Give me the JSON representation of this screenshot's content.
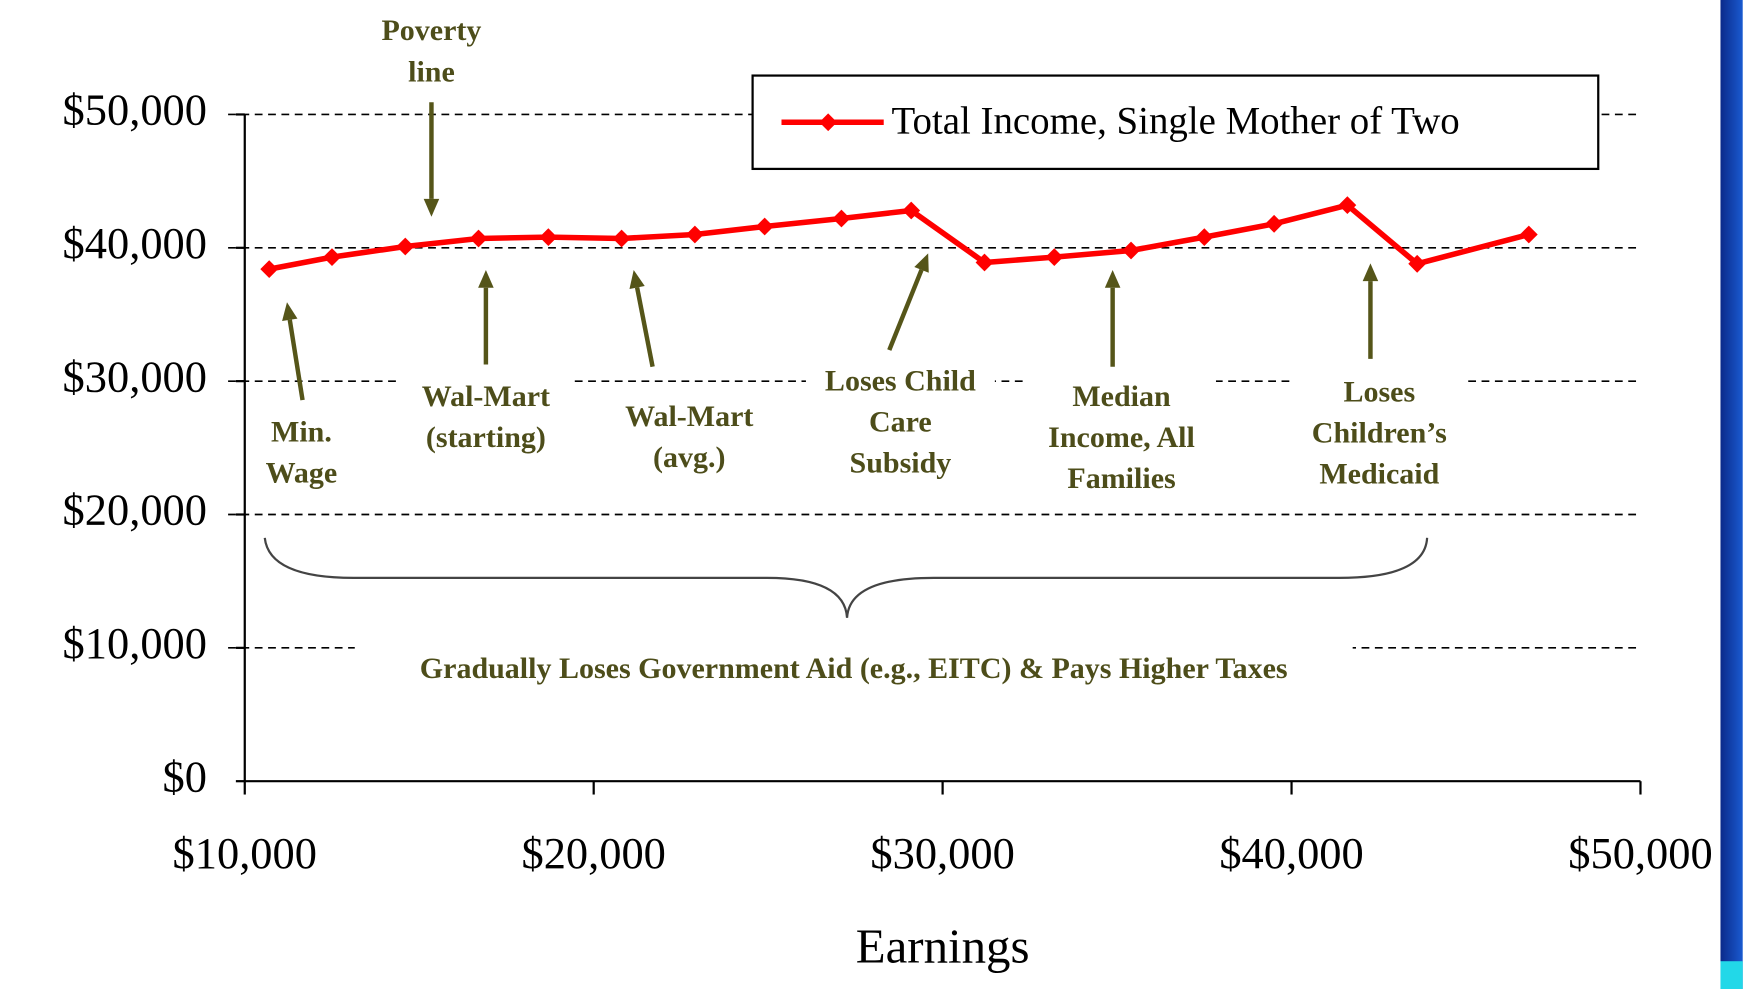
{
  "chart_data": {
    "type": "line",
    "x_label": "Earnings",
    "x": [
      10700,
      12500,
      14600,
      16700,
      18700,
      20800,
      22900,
      24900,
      27100,
      29100,
      31200,
      33200,
      35400,
      37500,
      39500,
      41600,
      43600,
      46800
    ],
    "series": [
      {
        "name": "Total Income, Single Mother of Two",
        "color": "#ff0000",
        "values": [
          38400,
          39300,
          40100,
          40700,
          40800,
          40700,
          41000,
          41600,
          42200,
          42800,
          38900,
          39300,
          39800,
          40800,
          41800,
          43200,
          38800,
          41000
        ]
      }
    ],
    "xlim": [
      10000,
      50000
    ],
    "xticks": [
      {
        "value": 10000,
        "label": "$10,000"
      },
      {
        "value": 20000,
        "label": "$20,000"
      },
      {
        "value": 30000,
        "label": "$30,000"
      },
      {
        "value": 40000,
        "label": "$40,000"
      },
      {
        "value": 50000,
        "label": "$50,000"
      }
    ],
    "ylim": [
      0,
      50000
    ],
    "yticks": [
      {
        "value": 0,
        "label": "$0"
      },
      {
        "value": 10000,
        "label": "$10,000"
      },
      {
        "value": 20000,
        "label": "$20,000"
      },
      {
        "value": 30000,
        "label": "$30,000"
      },
      {
        "value": 40000,
        "label": "$40,000"
      },
      {
        "value": 50000,
        "label": "$50,000"
      }
    ],
    "grid": true,
    "legend": "upper right",
    "annotations": [
      {
        "lines": [
          "Poverty",
          "line"
        ]
      },
      {
        "lines": [
          "Min.",
          "Wage"
        ]
      },
      {
        "lines": [
          "Wal-Mart",
          "(starting)"
        ]
      },
      {
        "lines": [
          "Wal-Mart",
          "(avg.)"
        ]
      },
      {
        "lines": [
          "Loses Child",
          "Care",
          "Subsidy"
        ]
      },
      {
        "lines": [
          "Median",
          "Income, All",
          "Families"
        ]
      },
      {
        "lines": [
          "Loses",
          "Children’s",
          "Medicaid"
        ]
      },
      {
        "lines": [
          "Gradually Loses Government Aid (e.g., EITC) & Pays Higher Taxes"
        ]
      }
    ]
  }
}
